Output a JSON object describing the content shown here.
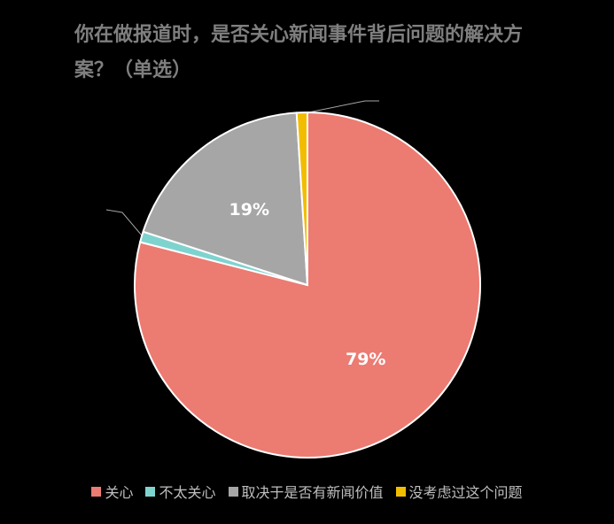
{
  "chart_data": {
    "type": "pie",
    "title": "你在做报道时，是否关心新闻事件背后问题的解决方案？（单选）",
    "categories": [
      "关心",
      "不太关心",
      "取决于是否有新闻价值",
      "没考虑过这个问题"
    ],
    "values": [
      79,
      1,
      19,
      1
    ],
    "value_labels": [
      "79%",
      null,
      "19%",
      null
    ],
    "colors": [
      "#ec7b72",
      "#7fd3cf",
      "#a6a6a6",
      "#f2bd00"
    ],
    "legend": "bottom"
  }
}
